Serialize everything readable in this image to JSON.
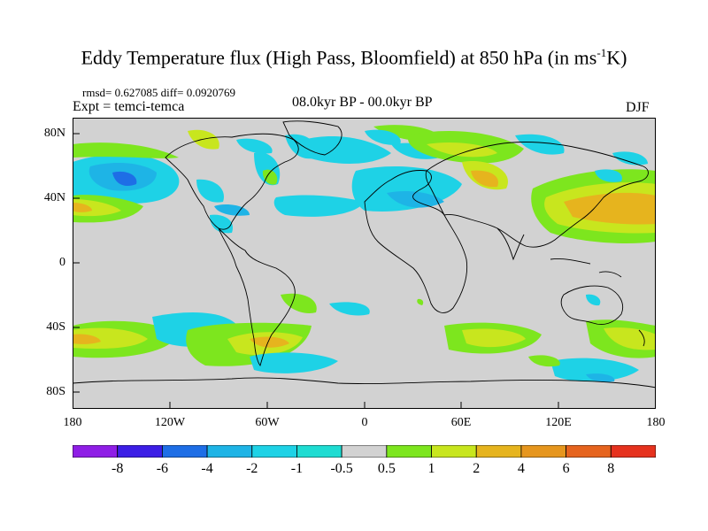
{
  "title": "Eddy Temperature flux (High Pass, Bloomfield) at 850 hPa (in ms",
  "title_sup": "-1",
  "title_end": "K)",
  "stats": "rmsd= 0.627085 diff= 0.0920769",
  "expt": "Expt = temci-temca",
  "period": "08.0kyr BP - 00.0kyr BP",
  "season": "DJF",
  "lat_labels": [
    "80N",
    "40N",
    "0",
    "40S",
    "80S"
  ],
  "lon_labels": [
    "180",
    "120W",
    "60W",
    "0",
    "60E",
    "120E",
    "180"
  ],
  "colorbar": {
    "labels": [
      "-8",
      "-6",
      "-4",
      "-2",
      "-1",
      "-0.5",
      "0.5",
      "1",
      "2",
      "4",
      "6",
      "8"
    ],
    "colors": [
      "#8f1ee6",
      "#3c1ee6",
      "#1e6ee6",
      "#1eb4e6",
      "#1ed2e6",
      "#1edcd2",
      "#d2d2d2",
      "#7de61e",
      "#c8e61e",
      "#e6b41e",
      "#e6961e",
      "#e6641e",
      "#e6321e"
    ]
  },
  "colors": {
    "ocean_land_background": "#d2d2d2",
    "coastline": "#000000"
  }
}
